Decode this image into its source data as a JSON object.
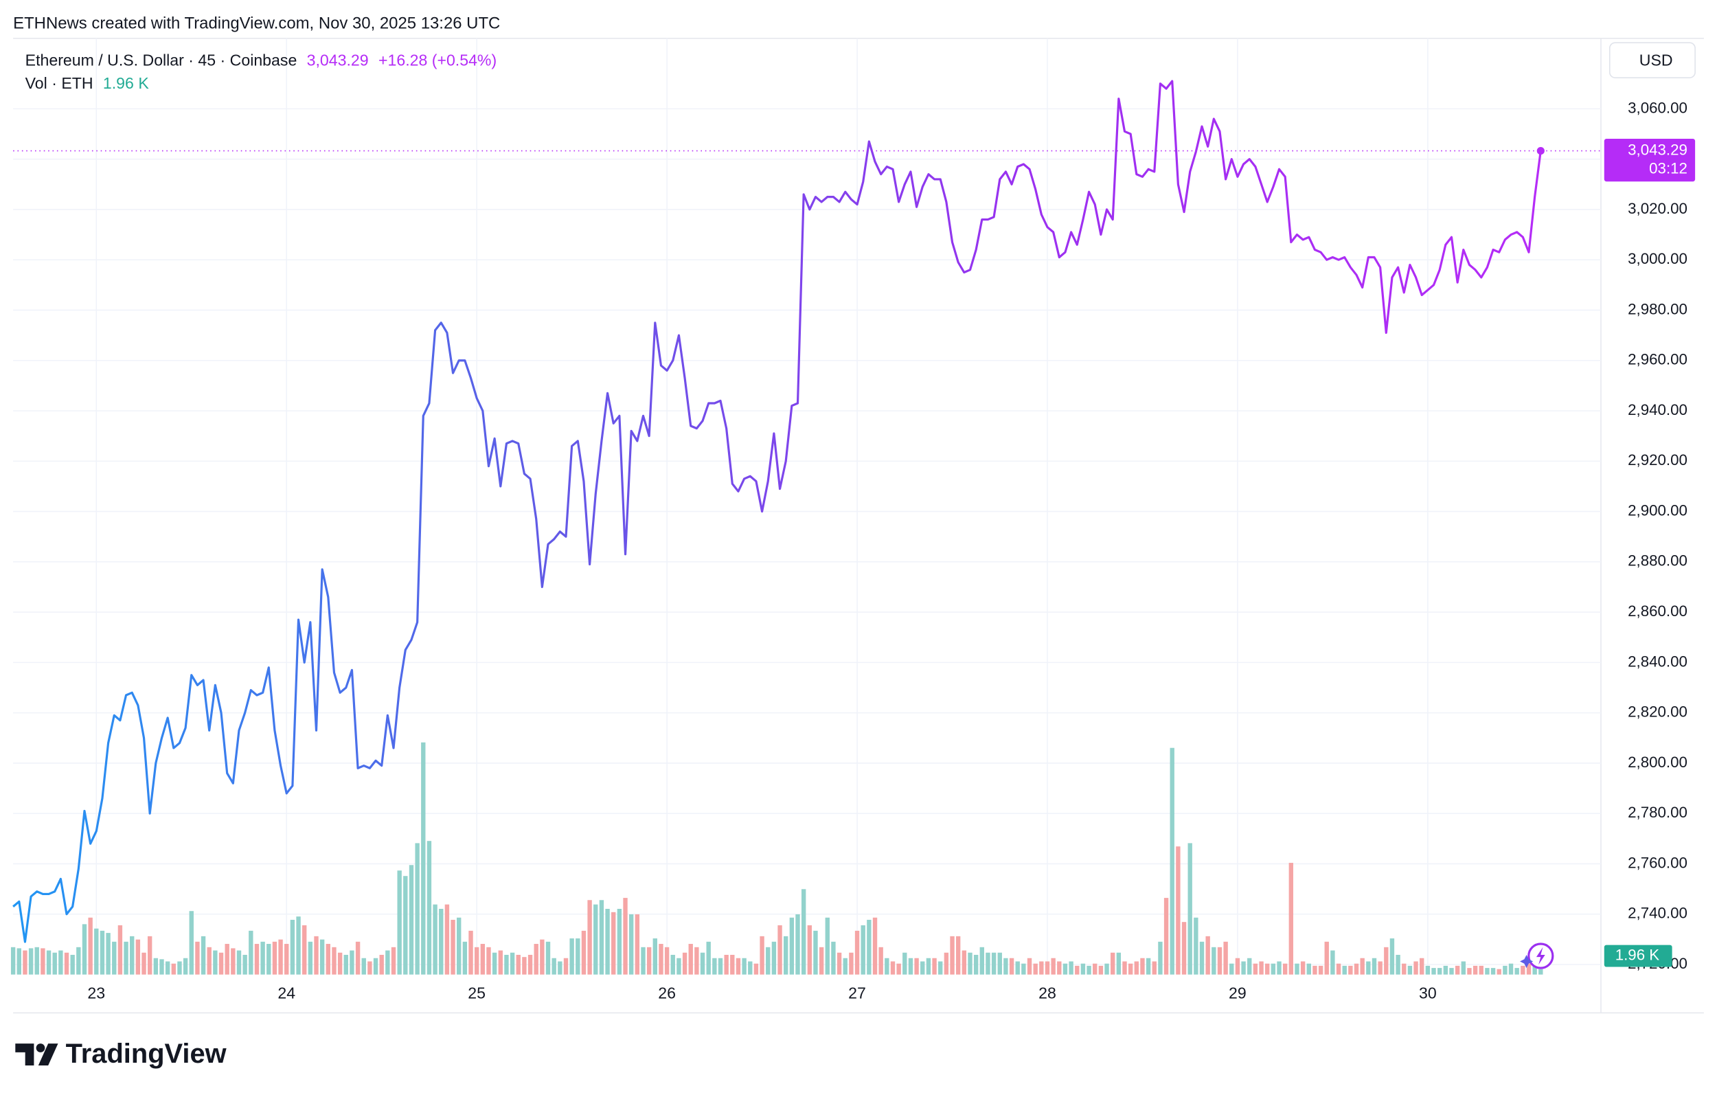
{
  "attribution": "ETHNews created with TradingView.com, Nov 30, 2025 13:26 UTC",
  "brand": "TradingView",
  "chart_data": {
    "type": "line",
    "currency": "USD",
    "categories": [
      null,
      null,
      null,
      null,
      null,
      null,
      null,
      null,
      null,
      null,
      null,
      null,
      null,
      null,
      "23",
      null,
      null,
      null,
      null,
      null,
      null,
      null,
      null,
      null,
      null,
      null,
      null,
      null,
      null,
      null,
      null,
      null,
      null,
      null,
      null,
      null,
      null,
      null,
      null,
      null,
      null,
      null,
      null,
      null,
      null,
      null,
      "24",
      null,
      null,
      null,
      null,
      null,
      null,
      null,
      null,
      null,
      null,
      null,
      null,
      null,
      null,
      null,
      null,
      null,
      null,
      null,
      null,
      null,
      null,
      null,
      null,
      null,
      null,
      null,
      null,
      null,
      null,
      null,
      "25",
      null,
      null,
      null,
      null,
      null,
      null,
      null,
      null,
      null,
      null,
      null,
      null,
      null,
      null,
      null,
      null,
      null,
      null,
      null,
      null,
      null,
      null,
      null,
      null,
      null,
      null,
      null,
      null,
      null,
      null,
      null,
      "26",
      null,
      null,
      null,
      null,
      null,
      null,
      null,
      null,
      null,
      null,
      null,
      null,
      null,
      null,
      null,
      null,
      null,
      null,
      null,
      null,
      null,
      null,
      null,
      null,
      null,
      null,
      null,
      null,
      null,
      null,
      null,
      "27",
      null,
      null,
      null,
      null,
      null,
      null,
      null,
      null,
      null,
      null,
      null,
      null,
      null,
      null,
      null,
      null,
      null,
      null,
      null,
      null,
      null,
      null,
      null,
      null,
      null,
      null,
      null,
      null,
      null,
      null,
      null,
      "28",
      null,
      null,
      null,
      null,
      null,
      null,
      null,
      null,
      null,
      null,
      null,
      null,
      null,
      null,
      null,
      null,
      null,
      null,
      null,
      null,
      null,
      null,
      null,
      null,
      null,
      null,
      null,
      null,
      null,
      null,
      null,
      "29",
      null,
      null,
      null,
      null,
      null,
      null,
      null,
      null,
      null,
      null,
      null,
      null,
      null,
      null,
      null,
      null,
      null,
      null,
      null,
      null,
      null,
      null,
      null,
      null,
      null,
      null,
      null,
      null,
      null,
      null,
      null,
      "30",
      null,
      null,
      null,
      null,
      null,
      null,
      null,
      null,
      null,
      null,
      null,
      null,
      null,
      null,
      null,
      null,
      null,
      null,
      null
    ],
    "series": [
      {
        "name": "Ethereum / U.S. Dollar · 45 · Coinbase",
        "line_colors": [
          "#2196f3",
          "#5e5ce6",
          "#9b30f0",
          "#b52cf7"
        ],
        "last_label": "3,043.29",
        "change_label": "+16.28 (+0.54%)",
        "countdown": "03:12",
        "values": [
          2743,
          2745,
          2729,
          2747,
          2749,
          2748,
          2748,
          2749,
          2754,
          2740,
          2743,
          2758,
          2781,
          2768,
          2773,
          2786,
          2808,
          2819,
          2817,
          2827,
          2828,
          2823,
          2810,
          2780,
          2800,
          2810,
          2818,
          2806,
          2808,
          2814,
          2835,
          2831,
          2833,
          2813,
          2831,
          2820,
          2796,
          2792,
          2813,
          2820,
          2829,
          2827,
          2828,
          2838,
          2813,
          2799,
          2788,
          2791,
          2857,
          2840,
          2856,
          2813,
          2877,
          2866,
          2836,
          2828,
          2830,
          2837,
          2798,
          2799,
          2798,
          2801,
          2799,
          2819,
          2806,
          2830,
          2845,
          2849,
          2856,
          2938,
          2943,
          2972,
          2975,
          2971,
          2955,
          2960,
          2960,
          2953,
          2945,
          2940,
          2918,
          2929,
          2910,
          2927,
          2928,
          2927,
          2915,
          2913,
          2897,
          2870,
          2887,
          2889,
          2892,
          2890,
          2926,
          2928,
          2912,
          2879,
          2907,
          2928,
          2947,
          2935,
          2938,
          2883,
          2932,
          2928,
          2938,
          2930,
          2975,
          2958,
          2956,
          2960,
          2970,
          2953,
          2934,
          2933,
          2936,
          2943,
          2943,
          2944,
          2933,
          2911,
          2908,
          2913,
          2914,
          2912,
          2900,
          2912,
          2931,
          2909,
          2920,
          2942,
          2943,
          3026,
          3020,
          3025,
          3023,
          3025,
          3025,
          3023,
          3027,
          3024,
          3022,
          3031,
          3047,
          3039,
          3034,
          3037,
          3036,
          3023,
          3030,
          3035,
          3021,
          3029,
          3034,
          3032,
          3032,
          3023,
          3007,
          2999,
          2995,
          2996,
          3004,
          3016,
          3016,
          3017,
          3032,
          3035,
          3030,
          3037,
          3038,
          3036,
          3028,
          3018,
          3013,
          3011,
          3001,
          3003,
          3011,
          3006,
          3016,
          3027,
          3022,
          3010,
          3020,
          3016,
          3064,
          3051,
          3050,
          3034,
          3033,
          3036,
          3035,
          3070,
          3068,
          3071,
          3030,
          3019,
          3035,
          3043,
          3053,
          3045,
          3056,
          3051,
          3032,
          3040,
          3033,
          3038,
          3040,
          3037,
          3030,
          3023,
          3029,
          3036,
          3033,
          3007,
          3010,
          3008,
          3009,
          3004,
          3003,
          3000,
          3001,
          3000,
          3001,
          2997,
          2994,
          2989,
          3001,
          3001,
          2997,
          2971,
          2993,
          2997,
          2987,
          2998,
          2993,
          2986,
          2988,
          2990,
          2996,
          3006,
          3009,
          2991,
          3004,
          2998,
          2996,
          2993,
          2997,
          3004,
          3003,
          3008,
          3010,
          3011,
          3009,
          3003,
          3025,
          3043.29
        ]
      }
    ],
    "volume": {
      "name": "Vol · ETH",
      "up_color": "#92d2cc",
      "down_color": "#f5a5a5",
      "label_color": "#22ab94",
      "last_label": "1.96 K",
      "ylim": [
        0,
        100000
      ],
      "values": [
        10000,
        9600,
        8800,
        9600,
        10000,
        9600,
        8800,
        8000,
        8800,
        8000,
        7200,
        10000,
        18400,
        20800,
        16800,
        16000,
        15200,
        12000,
        18000,
        12000,
        14000,
        12800,
        8000,
        14000,
        6000,
        5600,
        4800,
        4000,
        4800,
        6000,
        23200,
        12000,
        14000,
        10000,
        8800,
        8000,
        11200,
        9600,
        8800,
        7200,
        16000,
        11200,
        12000,
        11200,
        12000,
        12800,
        11200,
        20000,
        21200,
        18000,
        12000,
        14000,
        12800,
        11200,
        10000,
        8000,
        7200,
        8800,
        12000,
        6000,
        4800,
        6000,
        7200,
        8800,
        10000,
        38000,
        36000,
        40000,
        48000,
        84800,
        48800,
        25600,
        24000,
        25600,
        20000,
        20800,
        12000,
        16000,
        10000,
        11200,
        10000,
        8000,
        8800,
        7200,
        8000,
        7200,
        6400,
        7200,
        11200,
        12800,
        12000,
        6000,
        4800,
        6000,
        13200,
        13200,
        16000,
        27200,
        25600,
        27200,
        24000,
        22800,
        24000,
        28000,
        22000,
        22000,
        10000,
        10000,
        13200,
        11200,
        10000,
        7200,
        6000,
        8000,
        11200,
        10000,
        8000,
        12000,
        6000,
        6000,
        7200,
        7200,
        6000,
        6000,
        4800,
        4000,
        14000,
        10000,
        12000,
        18000,
        14000,
        20800,
        22000,
        31200,
        18000,
        16000,
        10000,
        20800,
        12000,
        8000,
        6000,
        8000,
        16000,
        18000,
        20000,
        20800,
        10000,
        6000,
        4800,
        4000,
        8000,
        6000,
        6000,
        4800,
        6000,
        6000,
        4800,
        8000,
        14000,
        14000,
        8800,
        8000,
        7200,
        10000,
        8000,
        8000,
        8000,
        6000,
        6000,
        4800,
        4000,
        6000,
        4000,
        4800,
        4800,
        6000,
        4800,
        4000,
        4800,
        3200,
        4000,
        3200,
        4000,
        3200,
        4000,
        8000,
        8000,
        4800,
        4000,
        4800,
        6000,
        6000,
        4800,
        12000,
        28000,
        82800,
        46800,
        19200,
        48000,
        20800,
        12000,
        14000,
        10000,
        10000,
        12000,
        4000,
        6000,
        4800,
        6000,
        4000,
        4800,
        4000,
        4000,
        4800,
        4000,
        40800,
        4000,
        4800,
        4000,
        3200,
        3200,
        12000,
        8800,
        4000,
        3200,
        3200,
        4000,
        6000,
        4800,
        6000,
        4800,
        10000,
        13200,
        7200,
        4000,
        3200,
        4800,
        6000,
        3200,
        2400,
        2400,
        3200,
        2400,
        3200,
        4800,
        2400,
        3200,
        3200,
        2400,
        2400,
        2000,
        3200,
        4000,
        2400,
        3200,
        4000,
        3200,
        1960
      ]
    },
    "ylim": [
      2716,
      3088
    ],
    "yticks": [
      {
        "value": 2720,
        "label": "2,720.00"
      },
      {
        "value": 2740,
        "label": "2,740.00"
      },
      {
        "value": 2760,
        "label": "2,760.00"
      },
      {
        "value": 2780,
        "label": "2,780.00"
      },
      {
        "value": 2800,
        "label": "2,800.00"
      },
      {
        "value": 2820,
        "label": "2,820.00"
      },
      {
        "value": 2840,
        "label": "2,840.00"
      },
      {
        "value": 2860,
        "label": "2,860.00"
      },
      {
        "value": 2880,
        "label": "2,880.00"
      },
      {
        "value": 2900,
        "label": "2,900.00"
      },
      {
        "value": 2920,
        "label": "2,920.00"
      },
      {
        "value": 2940,
        "label": "2,940.00"
      },
      {
        "value": 2960,
        "label": "2,960.00"
      },
      {
        "value": 2980,
        "label": "2,980.00"
      },
      {
        "value": 3000,
        "label": "3,000.00"
      },
      {
        "value": 3020,
        "label": "3,020.00"
      },
      {
        "value": 3040,
        "label": "3,040.00"
      },
      {
        "value": 3060,
        "label": "3,060.00"
      }
    ],
    "grid": true
  }
}
